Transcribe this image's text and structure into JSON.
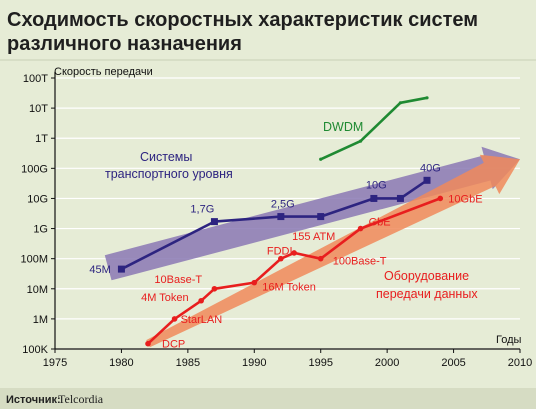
{
  "chart_data": {
    "type": "line",
    "title": "Сходимость скоростных характеристик систем различного назначения",
    "title_lines": [
      "Сходимость скоростных характеристик систем",
      "различного назначения"
    ],
    "xlabel": "Годы",
    "ylabel": "Скорость передачи",
    "xlim": [
      1975,
      2010
    ],
    "x_ticks": [
      1975,
      1980,
      1985,
      1990,
      1995,
      2000,
      2005,
      2010
    ],
    "y_scale": "log",
    "ylim": [
      100000,
      100000000000000
    ],
    "y_tick_values": [
      100000,
      1000000,
      10000000,
      100000000,
      1000000000,
      10000000000,
      100000000000,
      1000000000000,
      10000000000000,
      100000000000000
    ],
    "y_tick_labels": [
      "100K",
      "1M",
      "10M",
      "100M",
      "1G",
      "10G",
      "100G",
      "1T",
      "10T",
      "100T"
    ],
    "grid": true,
    "series": [
      {
        "name": "Системы транспортного уровня",
        "name_lines": [
          "Системы",
          "транспортного уровня"
        ],
        "color": "#2d2480",
        "marker": "square",
        "points": [
          {
            "x": 1980,
            "y": 45000000,
            "label": "45M"
          },
          {
            "x": 1987,
            "y": 1700000000,
            "label": "1,7G"
          },
          {
            "x": 1992,
            "y": 2500000000,
            "label": "2,5G"
          },
          {
            "x": 1995,
            "y": 2500000000,
            "label": ""
          },
          {
            "x": 1999,
            "y": 10000000000,
            "label": "10G"
          },
          {
            "x": 2001,
            "y": 10000000000,
            "label": ""
          },
          {
            "x": 2003,
            "y": 40000000000,
            "label": "40G"
          }
        ]
      },
      {
        "name": "Оборудование передачи данных",
        "name_lines": [
          "Оборудование",
          "передачи данных"
        ],
        "color": "#e81e1e",
        "marker": "dot",
        "points": [
          {
            "x": 1982,
            "y": 150000,
            "label": "DCP"
          },
          {
            "x": 1984,
            "y": 1000000,
            "label": "StarLAN"
          },
          {
            "x": 1986,
            "y": 4000000,
            "label": "4M Token"
          },
          {
            "x": 1987,
            "y": 10000000,
            "label": "10Base-T"
          },
          {
            "x": 1990,
            "y": 16000000,
            "label": "16M Token"
          },
          {
            "x": 1992,
            "y": 100000000,
            "label": "FDDI"
          },
          {
            "x": 1993,
            "y": 155000000,
            "label": "155 ATM"
          },
          {
            "x": 1995,
            "y": 100000000,
            "label": "100Base-T"
          },
          {
            "x": 1998,
            "y": 1000000000,
            "label": "GbE"
          },
          {
            "x": 2004,
            "y": 10000000000,
            "label": "10GbE"
          }
        ]
      },
      {
        "name": "DWDM",
        "name_lines": [
          "DWDM"
        ],
        "color": "#1f8a32",
        "marker": "none",
        "points": [
          {
            "x": 1995,
            "y": 200000000000
          },
          {
            "x": 1998,
            "y": 800000000000
          },
          {
            "x": 2001,
            "y": 15000000000000
          },
          {
            "x": 2003,
            "y": 22000000000000
          }
        ]
      }
    ],
    "trend_arrows": [
      {
        "color": "#8a78b4",
        "from": {
          "x": 1979,
          "y": 50000000
        },
        "to": {
          "x": 2010,
          "y": 200000000000
        }
      },
      {
        "color": "#f08a5a",
        "from": {
          "x": 1982,
          "y": 150000
        },
        "to": {
          "x": 2010,
          "y": 200000000000
        }
      }
    ]
  },
  "source": {
    "label": "Источник:",
    "value": "Telcordia"
  },
  "colors": {
    "background": "#e6ecd6",
    "plot_background": "#e6ecd6",
    "grid": "#ffffff",
    "axis": "#111111"
  }
}
